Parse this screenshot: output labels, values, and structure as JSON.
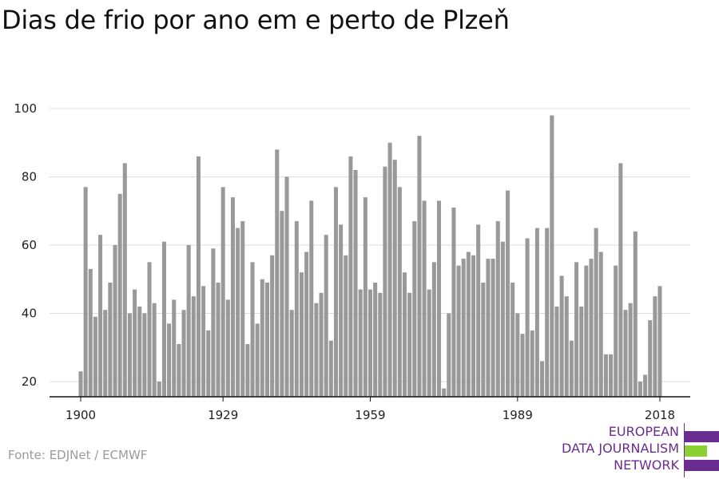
{
  "title": "Dias de frio por ano em e perto de Plzeň",
  "source": "Fonte: EDJNet / ECMWF",
  "logo": {
    "line1": "EUROPEAN",
    "line2": "DATA JOURNALISM",
    "line3": "NETWORK"
  },
  "colors": {
    "bar": "#999999",
    "grid": "#dddddd",
    "axis": "#111111",
    "brand_purple": "#6b2c91",
    "brand_green": "#8cd032"
  },
  "chart_data": {
    "type": "bar",
    "title": "Dias de frio por ano em e perto de Plzeň",
    "xlabel": "",
    "ylabel": "",
    "ylim": [
      15,
      100
    ],
    "yticks": [
      20,
      40,
      60,
      80,
      100
    ],
    "xticks": [
      1900,
      1929,
      1959,
      1989,
      2018
    ],
    "grid": true,
    "x": [
      1900,
      1901,
      1902,
      1903,
      1904,
      1905,
      1906,
      1907,
      1908,
      1909,
      1910,
      1911,
      1912,
      1913,
      1914,
      1915,
      1916,
      1917,
      1918,
      1919,
      1920,
      1921,
      1922,
      1923,
      1924,
      1925,
      1926,
      1927,
      1928,
      1929,
      1930,
      1931,
      1932,
      1933,
      1934,
      1935,
      1936,
      1937,
      1938,
      1939,
      1940,
      1941,
      1942,
      1943,
      1944,
      1945,
      1946,
      1947,
      1948,
      1949,
      1950,
      1951,
      1952,
      1953,
      1954,
      1955,
      1956,
      1957,
      1958,
      1959,
      1960,
      1961,
      1962,
      1963,
      1964,
      1965,
      1966,
      1967,
      1968,
      1969,
      1970,
      1971,
      1972,
      1973,
      1974,
      1975,
      1976,
      1977,
      1978,
      1979,
      1980,
      1981,
      1982,
      1983,
      1984,
      1985,
      1986,
      1987,
      1988,
      1989,
      1990,
      1991,
      1992,
      1993,
      1994,
      1995,
      1996,
      1997,
      1998,
      1999,
      2000,
      2001,
      2002,
      2003,
      2004,
      2005,
      2006,
      2007,
      2008,
      2009,
      2010,
      2011,
      2012,
      2013,
      2014,
      2015,
      2016,
      2017,
      2018
    ],
    "values": [
      23,
      77,
      53,
      39,
      63,
      41,
      49,
      60,
      75,
      84,
      40,
      47,
      42,
      40,
      55,
      43,
      20,
      61,
      37,
      44,
      31,
      41,
      60,
      45,
      86,
      48,
      35,
      59,
      49,
      77,
      44,
      74,
      65,
      67,
      31,
      55,
      37,
      50,
      49,
      57,
      88,
      70,
      80,
      41,
      67,
      52,
      58,
      73,
      43,
      46,
      63,
      32,
      77,
      66,
      57,
      86,
      82,
      47,
      74,
      47,
      49,
      46,
      83,
      90,
      85,
      77,
      52,
      46,
      67,
      92,
      73,
      47,
      55,
      73,
      18,
      40,
      71,
      54,
      56,
      58,
      57,
      66,
      49,
      56,
      56,
      67,
      61,
      76,
      49,
      40,
      34,
      62,
      35,
      65,
      26,
      65,
      98,
      42,
      51,
      45,
      32,
      55,
      42,
      54,
      56,
      65,
      58,
      28,
      28,
      54,
      84,
      41,
      43,
      64,
      20,
      22,
      38,
      45,
      48
    ]
  }
}
